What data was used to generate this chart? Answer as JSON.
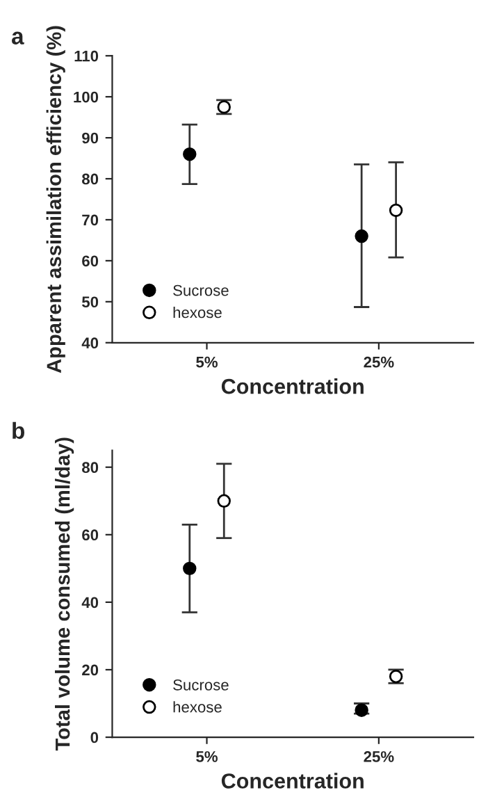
{
  "chart_data": [
    {
      "type": "scatter",
      "title": "a",
      "xlabel": "Concentration",
      "ylabel": "Apparent assimilation efficiency (%)",
      "categories": [
        "5%",
        "25%"
      ],
      "ylim": [
        40,
        110
      ],
      "yticks": [
        40,
        50,
        60,
        70,
        80,
        90,
        100,
        110
      ],
      "legend": "bottom left",
      "grid": false,
      "marker": "circle",
      "series": [
        {
          "name": "Sucrose",
          "color": "#000000",
          "values": [
            86,
            66
          ],
          "errors": [
            [
              78.7,
              93.2
            ],
            [
              48.7,
              83.5
            ]
          ]
        },
        {
          "name": "hexose",
          "color": "#ffffff",
          "values": [
            97.5,
            72.3
          ],
          "errors": [
            [
              95.8,
              99.2
            ],
            [
              60.8,
              84
            ]
          ]
        }
      ]
    },
    {
      "type": "scatter",
      "title": "b",
      "xlabel": "Concentration",
      "ylabel": "Total volume consumed (ml/day)",
      "categories": [
        "5%",
        "25%"
      ],
      "ylim": [
        0,
        85
      ],
      "yticks": [
        0,
        20,
        40,
        60,
        80
      ],
      "legend": "bottom left",
      "grid": false,
      "marker": "circle",
      "series": [
        {
          "name": "Sucrose",
          "color": "#000000",
          "values": [
            50,
            8
          ],
          "errors": [
            [
              37,
              63
            ],
            [
              7,
              10
            ]
          ]
        },
        {
          "name": "hexose",
          "color": "#ffffff",
          "values": [
            70,
            18
          ],
          "errors": [
            [
              59,
              81
            ],
            [
              16,
              20
            ]
          ]
        }
      ]
    }
  ]
}
